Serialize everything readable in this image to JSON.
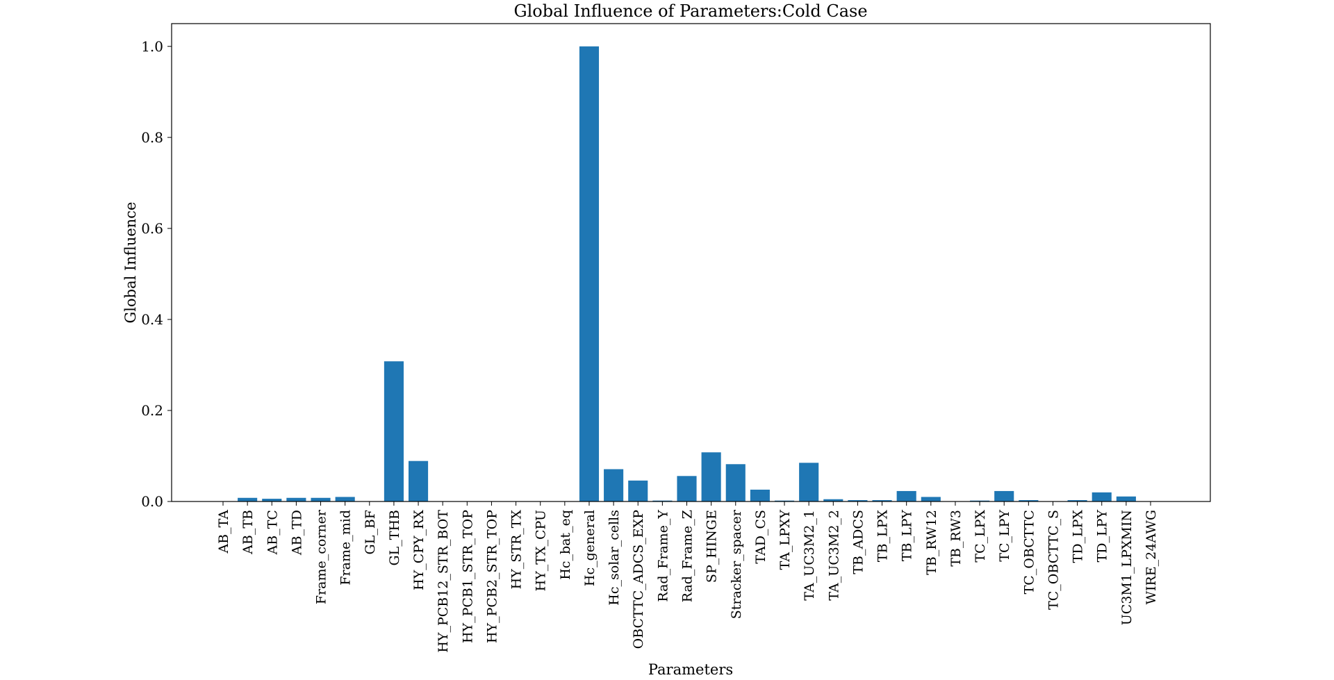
{
  "chart_data": {
    "type": "bar",
    "title": "Global Influence of Parameters:Cold Case",
    "xlabel": "Parameters",
    "ylabel": "Global Influence",
    "ylim": [
      0,
      1.05
    ],
    "yticks": [
      "0.0",
      "0.2",
      "0.4",
      "0.6",
      "0.8",
      "1.0"
    ],
    "grid": false,
    "bar_color": "#1f77b4",
    "categories": [
      "AB_TA",
      "AB_TB",
      "AB_TC",
      "AB_TD",
      "Frame_corner",
      "Frame_mid",
      "GL_BF",
      "GL_THB",
      "HY_CPY_RX",
      "HY_PCB12_STR_BOT",
      "HY_PCB1_STR_TOP",
      "HY_PCB2_STR_TOP",
      "HY_STR_TX",
      "HY_TX_CPU",
      "Hc_bat_eq",
      "Hc_general",
      "Hc_solar_cells",
      "OBCTTC_ADCS_EXP",
      "Rad_Frame_Y",
      "Rad_Frame_Z",
      "SP_HINGE",
      "Stracker_spacer",
      "TAD_CS",
      "TA_LPXY",
      "TA_UC3M2_1",
      "TA_UC3M2_2",
      "TB_ADCS",
      "TB_LPX",
      "TB_LPY",
      "TB_RW12",
      "TB_RW3",
      "TC_LPX",
      "TC_LPY",
      "TC_OBCTTC",
      "TC_OBCTTC_S",
      "TD_LPX",
      "TD_LPY",
      "UC3M1_LPXMIN",
      "WIRE_24AWG"
    ],
    "values": [
      0.0,
      0.008,
      0.006,
      0.008,
      0.008,
      0.01,
      0.0,
      0.308,
      0.089,
      0.0,
      0.0,
      0.0,
      0.0,
      0.0,
      0.0,
      1.0,
      0.071,
      0.046,
      0.002,
      0.056,
      0.108,
      0.082,
      0.026,
      0.002,
      0.085,
      0.005,
      0.003,
      0.003,
      0.023,
      0.01,
      0.0,
      0.002,
      0.023,
      0.003,
      0.0,
      0.003,
      0.02,
      0.011,
      0.0
    ]
  }
}
